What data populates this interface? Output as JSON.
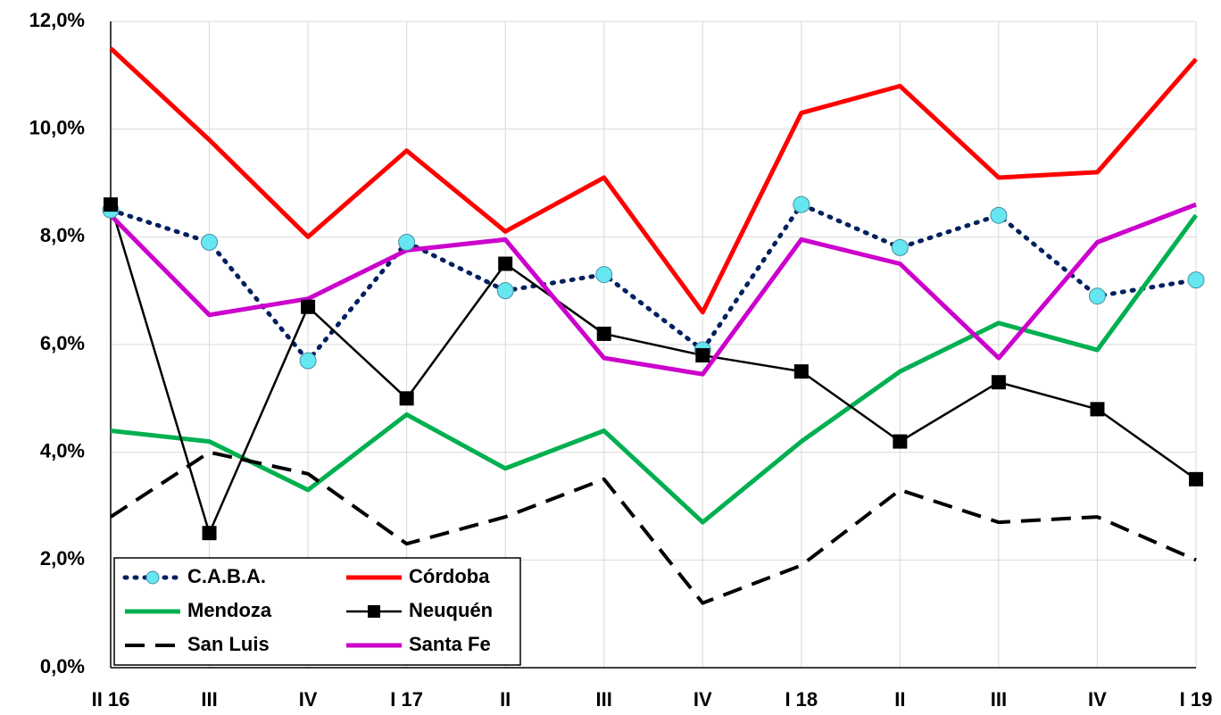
{
  "chart_data": {
    "type": "line",
    "categories": [
      "II 16",
      "III",
      "IV",
      "I 17",
      "II",
      "III",
      "IV",
      "I 18",
      "II",
      "III",
      "IV",
      "I 19"
    ],
    "series": [
      {
        "name": "C.A.B.A.",
        "color": "#002060",
        "line_style": "dotted",
        "marker": "circle",
        "marker_color": "#66e6f0",
        "values": [
          8.5,
          7.9,
          5.7,
          7.9,
          7.0,
          7.3,
          5.9,
          8.6,
          7.8,
          8.4,
          6.9,
          7.2
        ]
      },
      {
        "name": "Córdoba",
        "color": "#ff0000",
        "line_style": "solid",
        "values": [
          11.5,
          9.8,
          8.0,
          9.6,
          8.1,
          9.1,
          6.6,
          10.3,
          10.8,
          9.1,
          9.2,
          11.3
        ]
      },
      {
        "name": "Mendoza",
        "color": "#00b050",
        "line_style": "solid",
        "values": [
          4.4,
          4.2,
          3.3,
          4.7,
          3.7,
          4.4,
          2.7,
          4.2,
          5.5,
          6.4,
          5.9,
          8.4
        ]
      },
      {
        "name": "Neuquén",
        "color": "#000000",
        "line_style": "thin",
        "marker": "square",
        "marker_color": "#000000",
        "values": [
          8.6,
          2.5,
          6.7,
          5.0,
          7.5,
          6.2,
          5.8,
          5.5,
          4.2,
          5.3,
          4.8,
          3.5
        ]
      },
      {
        "name": "San Luis",
        "color": "#000000",
        "line_style": "dashed",
        "values": [
          2.8,
          4.0,
          3.6,
          2.3,
          2.8,
          3.5,
          1.2,
          1.9,
          3.3,
          2.7,
          2.8,
          2.0
        ]
      },
      {
        "name": "Santa Fe",
        "color": "#cc00cc",
        "line_style": "solid",
        "values": [
          8.4,
          6.55,
          6.85,
          7.75,
          7.95,
          5.75,
          5.45,
          7.95,
          7.5,
          5.75,
          7.9,
          8.6
        ]
      }
    ],
    "ylim": [
      0,
      12
    ],
    "yticks": [
      {
        "value": 0,
        "label": "0,0%"
      },
      {
        "value": 2,
        "label": "2,0%"
      },
      {
        "value": 4,
        "label": "4,0%"
      },
      {
        "value": 6,
        "label": "6,0%"
      },
      {
        "value": 8,
        "label": "8,0%"
      },
      {
        "value": 10,
        "label": "10,0%"
      },
      {
        "value": 12,
        "label": "12,0%"
      }
    ],
    "grid": true,
    "legend": "lower left"
  }
}
